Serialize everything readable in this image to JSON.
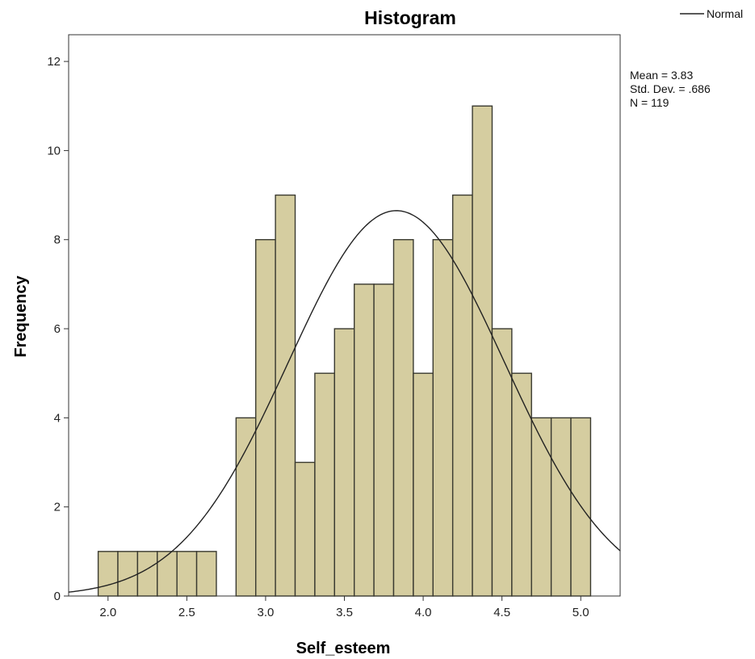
{
  "chart_data": {
    "type": "bar",
    "title": "Histogram",
    "xlabel": "Self_esteem",
    "ylabel": "Frequency",
    "xlim": [
      1.75,
      5.25
    ],
    "ylim": [
      0,
      12.6
    ],
    "xticks": [
      "2.0",
      "2.5",
      "3.0",
      "3.5",
      "4.0",
      "4.5",
      "5.0"
    ],
    "yticks": [
      "0",
      "2",
      "4",
      "6",
      "8",
      "10",
      "12"
    ],
    "bin_width": 0.125,
    "bins": [
      {
        "x": 2.0,
        "count": 1
      },
      {
        "x": 2.125,
        "count": 1
      },
      {
        "x": 2.25,
        "count": 1
      },
      {
        "x": 2.375,
        "count": 1
      },
      {
        "x": 2.5,
        "count": 1
      },
      {
        "x": 2.625,
        "count": 1
      },
      {
        "x": 2.875,
        "count": 4
      },
      {
        "x": 3.0,
        "count": 8
      },
      {
        "x": 3.125,
        "count": 9
      },
      {
        "x": 3.25,
        "count": 3
      },
      {
        "x": 3.375,
        "count": 5
      },
      {
        "x": 3.5,
        "count": 6
      },
      {
        "x": 3.625,
        "count": 7
      },
      {
        "x": 3.75,
        "count": 7
      },
      {
        "x": 3.875,
        "count": 8
      },
      {
        "x": 4.0,
        "count": 5
      },
      {
        "x": 4.125,
        "count": 8
      },
      {
        "x": 4.25,
        "count": 9
      },
      {
        "x": 4.375,
        "count": 11
      },
      {
        "x": 4.5,
        "count": 6
      },
      {
        "x": 4.625,
        "count": 5
      },
      {
        "x": 4.75,
        "count": 4
      },
      {
        "x": 4.875,
        "count": 4
      },
      {
        "x": 5.0,
        "count": 4
      }
    ],
    "normal_curve": {
      "mean": 3.83,
      "sd": 0.686,
      "n": 119
    },
    "legend": {
      "label": "Normal",
      "placement": "top-right"
    },
    "stats_text": [
      "Mean = 3.83",
      "Std. Dev. = .686",
      "N = 119"
    ],
    "grid": false,
    "colors": {
      "bar_fill": "#d5cda0",
      "bar_stroke": "#3a3a30",
      "curve": "#222222",
      "frame": "#333333"
    }
  }
}
